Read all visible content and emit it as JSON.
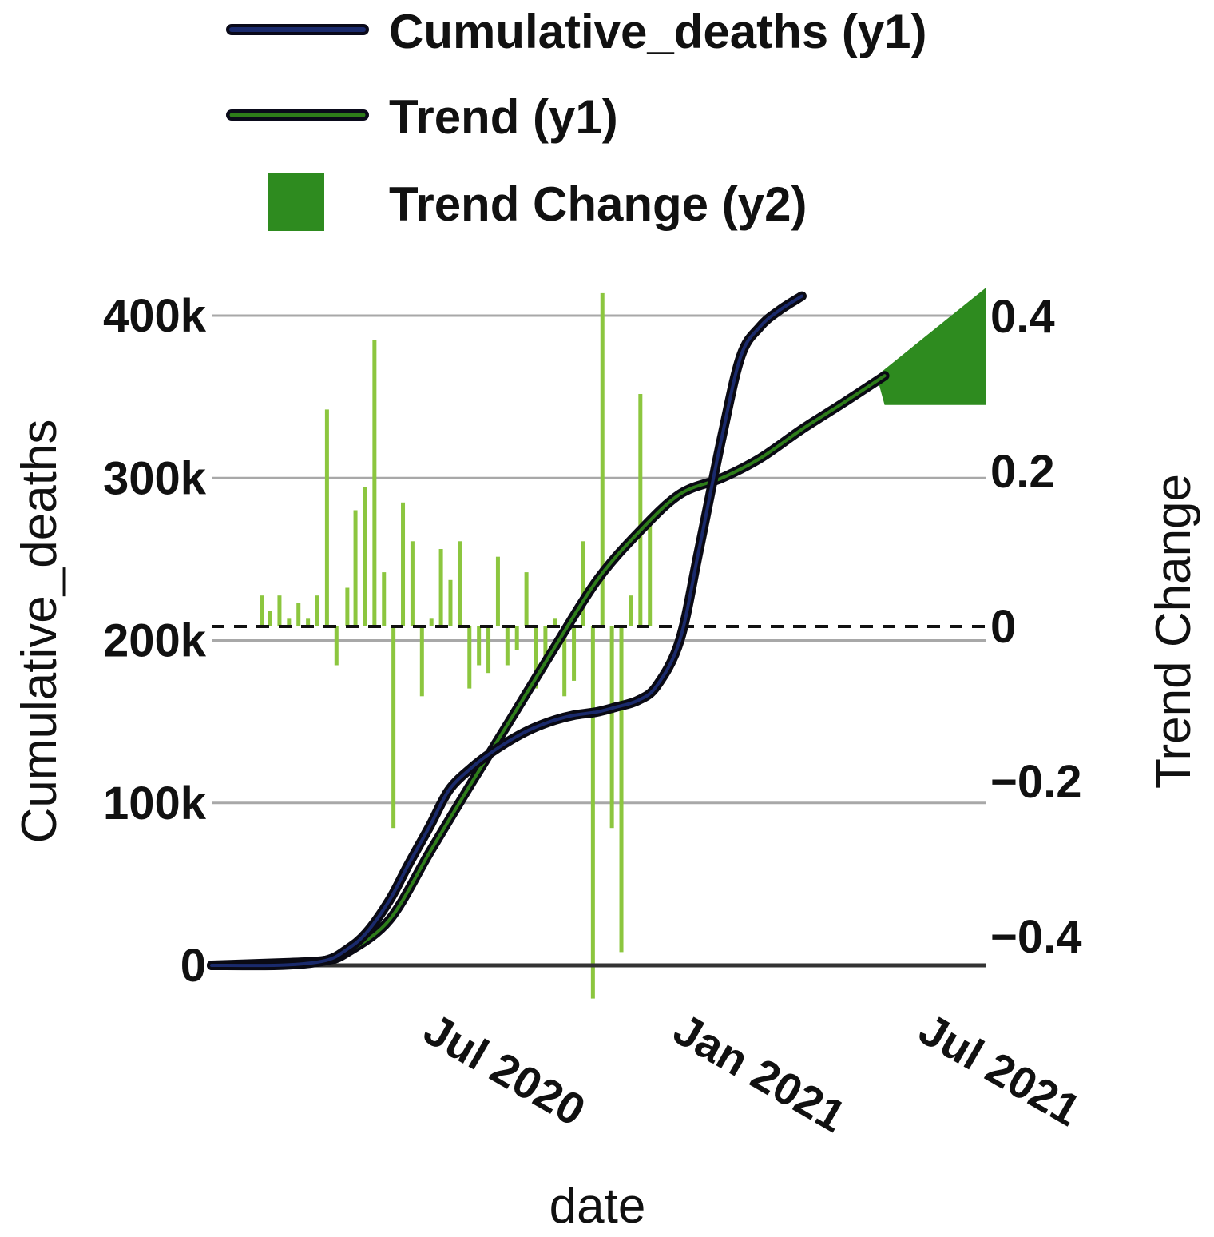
{
  "chart_data": {
    "type": "line",
    "title": "",
    "xlabel": "date",
    "ylabel": "Cumulative_deaths",
    "y2label": "Trend Change",
    "x_domain": [
      "2020-01-22",
      "2021-08-15"
    ],
    "ylim": [
      0,
      400000
    ],
    "y2lim": [
      -0.4,
      0.4
    ],
    "grid": true,
    "legend_position": "top",
    "y_ticks": [
      {
        "value": 0,
        "label": "0"
      },
      {
        "value": 100000,
        "label": "100k"
      },
      {
        "value": 200000,
        "label": "200k"
      },
      {
        "value": 300000,
        "label": "300k"
      },
      {
        "value": 400000,
        "label": "400k"
      }
    ],
    "y2_ticks": [
      {
        "value": -0.4,
        "label": "−0.4"
      },
      {
        "value": -0.2,
        "label": "−0.2"
      },
      {
        "value": 0,
        "label": "0"
      },
      {
        "value": 0.2,
        "label": "0.2"
      },
      {
        "value": 0.4,
        "label": "0.4"
      }
    ],
    "x_ticks": [
      {
        "date": "2020-07-01",
        "label": "Jul 2020"
      },
      {
        "date": "2021-01-01",
        "label": "Jan 2021"
      },
      {
        "date": "2021-07-01",
        "label": "Jul 2021"
      }
    ],
    "legend": [
      {
        "label": "Cumulative_deaths (y1)",
        "kind": "line",
        "color": "#1a2a6c"
      },
      {
        "label": "Trend (y1)",
        "kind": "line",
        "color": "#2e7d1a"
      },
      {
        "label": "Trend Change (y2)",
        "kind": "box",
        "color": "#2e8b1f"
      }
    ],
    "series": [
      {
        "name": "Cumulative_deaths",
        "axis": "y1",
        "color": "#1a2a6c",
        "points": [
          {
            "date": "2020-01-22",
            "value": 0
          },
          {
            "date": "2020-03-15",
            "value": 200
          },
          {
            "date": "2020-04-15",
            "value": 3000
          },
          {
            "date": "2020-05-01",
            "value": 10000
          },
          {
            "date": "2020-05-15",
            "value": 20000
          },
          {
            "date": "2020-06-01",
            "value": 40000
          },
          {
            "date": "2020-06-15",
            "value": 62000
          },
          {
            "date": "2020-07-01",
            "value": 86000
          },
          {
            "date": "2020-07-15",
            "value": 108000
          },
          {
            "date": "2020-08-01",
            "value": 122000
          },
          {
            "date": "2020-08-15",
            "value": 131000
          },
          {
            "date": "2020-09-01",
            "value": 140000
          },
          {
            "date": "2020-09-15",
            "value": 146000
          },
          {
            "date": "2020-10-01",
            "value": 151000
          },
          {
            "date": "2020-10-15",
            "value": 154000
          },
          {
            "date": "2020-11-01",
            "value": 156000
          },
          {
            "date": "2020-11-15",
            "value": 159000
          },
          {
            "date": "2020-12-01",
            "value": 163000
          },
          {
            "date": "2020-12-15",
            "value": 172000
          },
          {
            "date": "2021-01-01",
            "value": 200000
          },
          {
            "date": "2021-01-15",
            "value": 255000
          },
          {
            "date": "2021-02-01",
            "value": 325000
          },
          {
            "date": "2021-02-15",
            "value": 375000
          },
          {
            "date": "2021-03-01",
            "value": 393000
          },
          {
            "date": "2021-03-15",
            "value": 403000
          },
          {
            "date": "2021-04-01",
            "value": 412000
          }
        ]
      },
      {
        "name": "Trend",
        "axis": "y1",
        "color": "#2e7d1a",
        "points": [
          {
            "date": "2020-01-22",
            "value": 0
          },
          {
            "date": "2020-03-15",
            "value": 1500
          },
          {
            "date": "2020-04-15",
            "value": 3000
          },
          {
            "date": "2020-05-01",
            "value": 8000
          },
          {
            "date": "2020-06-01",
            "value": 28000
          },
          {
            "date": "2020-07-01",
            "value": 70000
          },
          {
            "date": "2020-08-01",
            "value": 113000
          },
          {
            "date": "2020-09-01",
            "value": 155000
          },
          {
            "date": "2020-10-01",
            "value": 196000
          },
          {
            "date": "2020-11-01",
            "value": 237000
          },
          {
            "date": "2020-12-01",
            "value": 266000
          },
          {
            "date": "2021-01-01",
            "value": 290000
          },
          {
            "date": "2021-02-01",
            "value": 300000
          },
          {
            "date": "2021-03-01",
            "value": 312000
          },
          {
            "date": "2021-04-01",
            "value": 330000
          },
          {
            "date": "2021-05-01",
            "value": 346000
          },
          {
            "date": "2021-06-01",
            "value": 363000
          }
        ]
      }
    ],
    "trend_change": {
      "name": "Trend Change",
      "axis": "y2",
      "color": "#8cc63f",
      "bars": [
        {
          "date": "2020-02-28",
          "value": 0.04
        },
        {
          "date": "2020-03-05",
          "value": 0.02
        },
        {
          "date": "2020-03-12",
          "value": 0.04
        },
        {
          "date": "2020-03-19",
          "value": 0.01
        },
        {
          "date": "2020-03-26",
          "value": 0.03
        },
        {
          "date": "2020-04-02",
          "value": 0.01
        },
        {
          "date": "2020-04-09",
          "value": 0.04
        },
        {
          "date": "2020-04-16",
          "value": 0.28
        },
        {
          "date": "2020-04-23",
          "value": -0.05
        },
        {
          "date": "2020-05-01",
          "value": 0.05
        },
        {
          "date": "2020-05-07",
          "value": 0.15
        },
        {
          "date": "2020-05-14",
          "value": 0.18
        },
        {
          "date": "2020-05-21",
          "value": 0.37
        },
        {
          "date": "2020-05-28",
          "value": 0.07
        },
        {
          "date": "2020-06-04",
          "value": -0.26
        },
        {
          "date": "2020-06-11",
          "value": 0.16
        },
        {
          "date": "2020-06-18",
          "value": 0.11
        },
        {
          "date": "2020-06-25",
          "value": -0.09
        },
        {
          "date": "2020-07-02",
          "value": 0.01
        },
        {
          "date": "2020-07-09",
          "value": 0.1
        },
        {
          "date": "2020-07-16",
          "value": 0.06
        },
        {
          "date": "2020-07-23",
          "value": 0.11
        },
        {
          "date": "2020-07-30",
          "value": -0.08
        },
        {
          "date": "2020-08-06",
          "value": -0.05
        },
        {
          "date": "2020-08-13",
          "value": -0.06
        },
        {
          "date": "2020-08-20",
          "value": 0.09
        },
        {
          "date": "2020-08-27",
          "value": -0.05
        },
        {
          "date": "2020-09-03",
          "value": -0.03
        },
        {
          "date": "2020-09-10",
          "value": 0.07
        },
        {
          "date": "2020-09-17",
          "value": -0.08
        },
        {
          "date": "2020-09-24",
          "value": -0.04
        },
        {
          "date": "2020-10-01",
          "value": 0.01
        },
        {
          "date": "2020-10-08",
          "value": -0.09
        },
        {
          "date": "2020-10-15",
          "value": -0.07
        },
        {
          "date": "2020-10-22",
          "value": 0.11
        },
        {
          "date": "2020-10-29",
          "value": -0.48
        },
        {
          "date": "2020-11-05",
          "value": 0.43
        },
        {
          "date": "2020-11-12",
          "value": -0.26
        },
        {
          "date": "2020-11-19",
          "value": -0.42
        },
        {
          "date": "2020-11-26",
          "value": 0.04
        },
        {
          "date": "2020-12-03",
          "value": 0.3
        },
        {
          "date": "2020-12-10",
          "value": 0.13
        }
      ]
    }
  }
}
